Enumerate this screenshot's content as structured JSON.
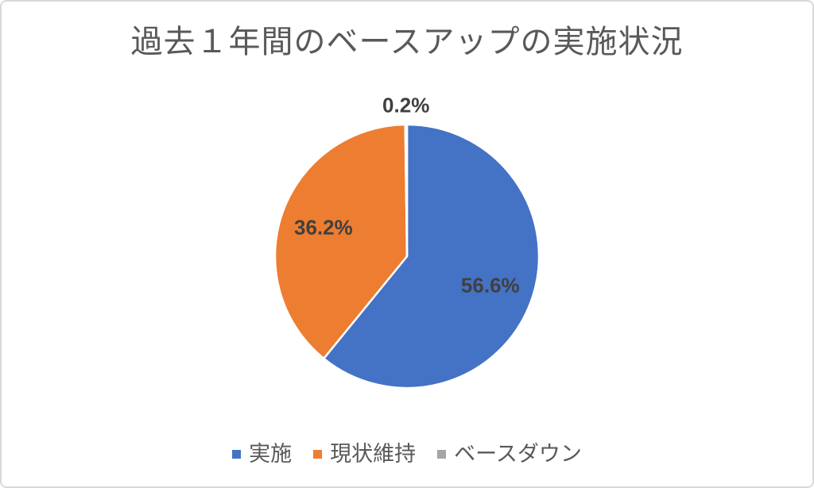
{
  "page": {
    "background_color": "#ffffff",
    "border_color": "#d9d9d9"
  },
  "chart_data": {
    "type": "pie",
    "title": "過去１年間のベースアップの実施状況",
    "title_color": "#595959",
    "start_angle": 0,
    "direction": "clockwise",
    "legend_position": "bottom",
    "legend_text_color": "#595959",
    "data_label_color": "#404040",
    "slice_border_color": "#ffffff",
    "slices": [
      {
        "label": "実施",
        "value": 56.6,
        "display": "56.6%",
        "color": "#4472C4",
        "label_placement": "inside"
      },
      {
        "label": "現状維持",
        "value": 36.2,
        "display": "36.2%",
        "color": "#ED7D31",
        "label_placement": "inside"
      },
      {
        "label": "ベースダウン",
        "value": 0.2,
        "display": "0.2%",
        "color": "#A5A5A5",
        "label_placement": "outside"
      }
    ]
  }
}
